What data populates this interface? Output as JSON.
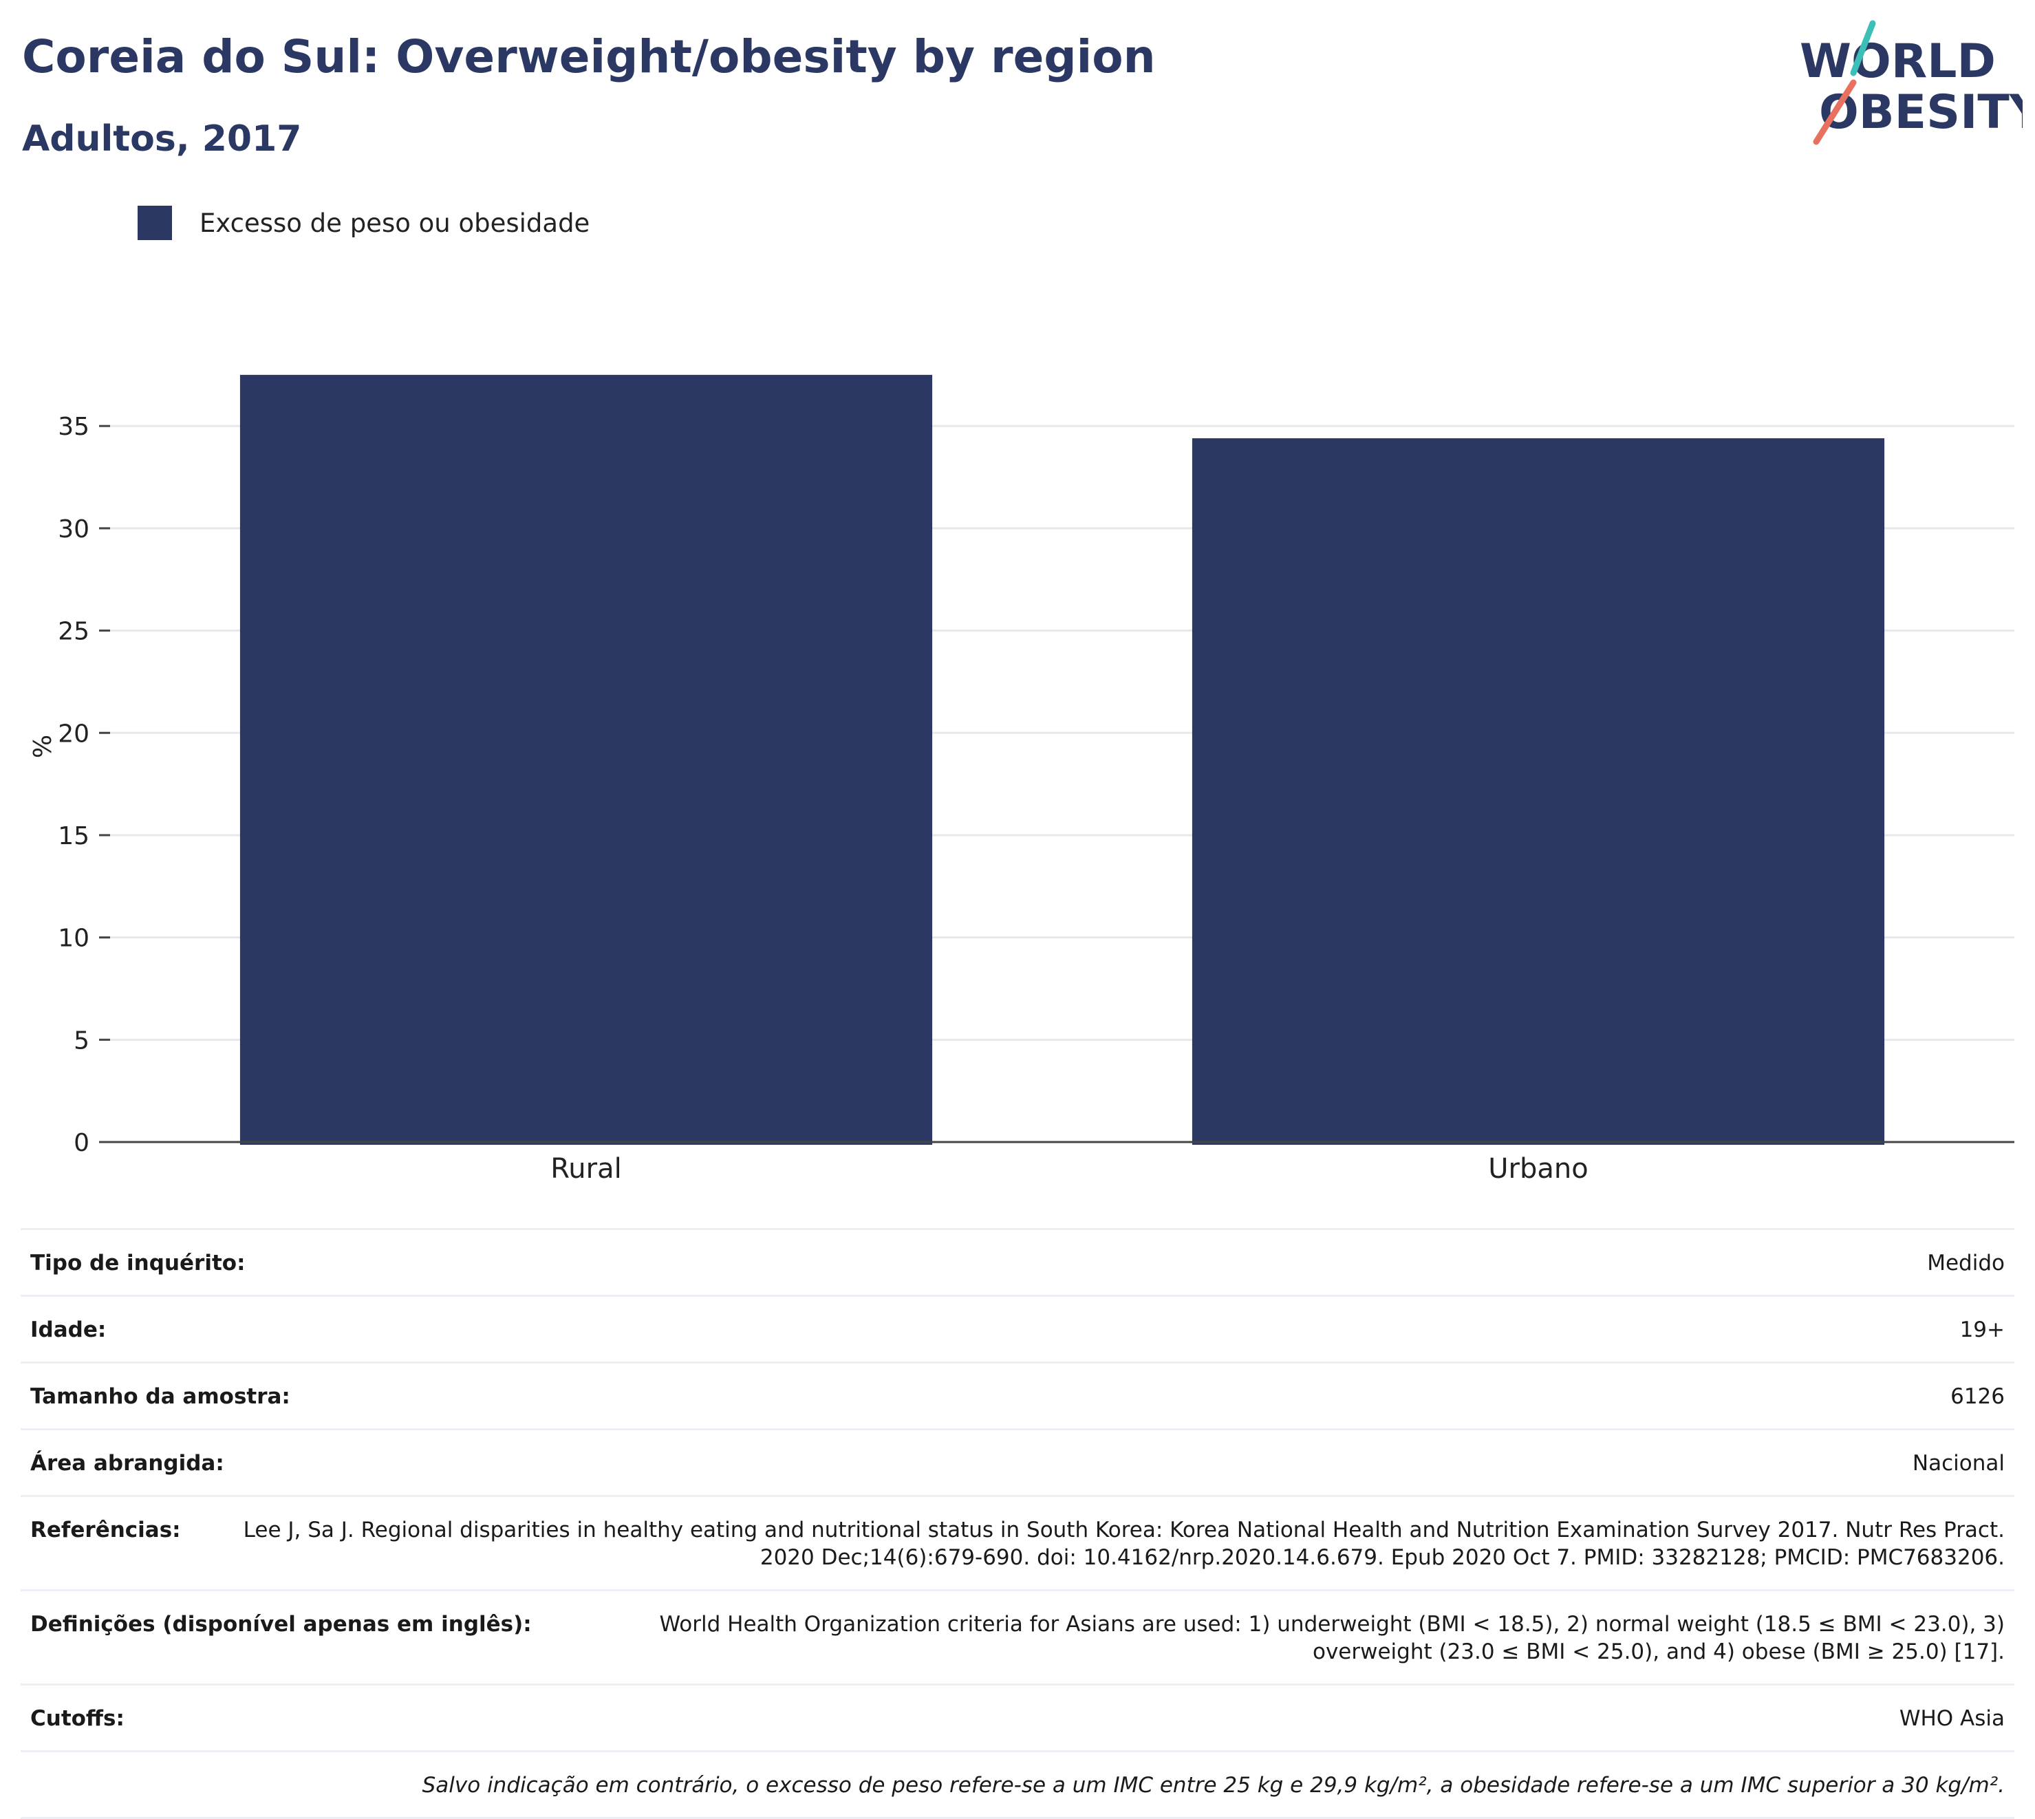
{
  "header": {
    "title": "Coreia do Sul: Overweight/obesity by region",
    "subtitle": "Adultos, 2017",
    "logo_line1": "WORLD",
    "logo_line2": "OBESITY"
  },
  "colors": {
    "bar": "#2b3864",
    "title": "#2b3864",
    "logo_teal": "#3bbfb6",
    "logo_coral": "#e8705e"
  },
  "chart_data": {
    "type": "bar",
    "categories": [
      "Rural",
      "Urbano"
    ],
    "series": [
      {
        "name": "Excesso de peso ou obesidade",
        "values": [
          37.5,
          34.4
        ]
      }
    ],
    "ylabel": "%",
    "ylim": [
      0,
      38
    ],
    "yticks": [
      0,
      5,
      10,
      15,
      20,
      25,
      30,
      35
    ],
    "grid": true,
    "legend_position": "top-left"
  },
  "details": {
    "survey_type": {
      "label": "Tipo de inquérito:",
      "value": "Medido"
    },
    "age": {
      "label": "Idade:",
      "value": "19+"
    },
    "sample_size": {
      "label": "Tamanho da amostra:",
      "value": "6126"
    },
    "area": {
      "label": "Área abrangida:",
      "value": "Nacional"
    },
    "references": {
      "label": "Referências:",
      "value": "Lee J, Sa J. Regional disparities in healthy eating and nutritional status in South Korea: Korea National Health and Nutrition Examination Survey 2017. Nutr Res Pract. 2020 Dec;14(6):679-690. doi: 10.4162/nrp.2020.14.6.679. Epub 2020 Oct 7. PMID: 33282128; PMCID: PMC7683206."
    },
    "definitions": {
      "label": "Definições (disponível apenas em inglês):",
      "value": "World Health Organization criteria for Asians are used: 1) underweight (BMI < 18.5), 2) normal weight (18.5 ≤ BMI < 23.0), 3) overweight (23.0 ≤ BMI < 25.0), and 4) obese (BMI ≥ 25.0) [17]."
    },
    "cutoffs": {
      "label": "Cutoffs:",
      "value": "WHO Asia"
    },
    "note": "Salvo indicação em contrário, o excesso de peso refere-se a um IMC entre 25 kg e 29,9 kg/m², a obesidade refere-se a um IMC superior a 30 kg/m²."
  }
}
